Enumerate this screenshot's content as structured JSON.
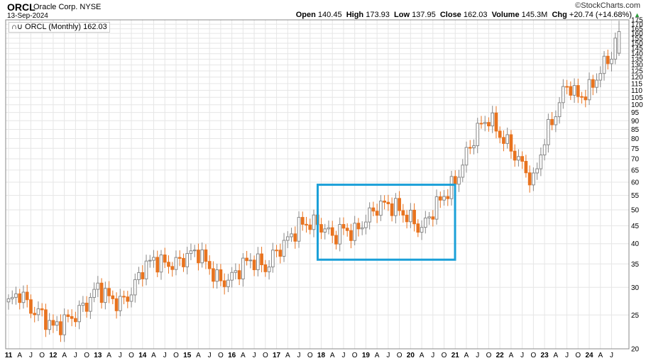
{
  "header": {
    "symbol": "ORCL",
    "company": "Oracle Corp.",
    "exchange": "NYSE",
    "date": "13-Sep-2024",
    "brand": "©StockCharts.com",
    "open_label": "Open",
    "open": "140.45",
    "high_label": "High",
    "high": "173.93",
    "low_label": "Low",
    "low": "137.95",
    "close_label": "Close",
    "close": "162.03",
    "volume_label": "Volume",
    "volume": "145.3M",
    "chg_label": "Chg",
    "chg": "+20.74 (+14.68%)"
  },
  "legend": {
    "text": "ORCL (Monthly) 162.03"
  },
  "colors": {
    "up": "#a0a0a0",
    "down": "#e8731f",
    "highlight": "#1ba0d8",
    "grid": "#e6e6e6",
    "change_arrow": "#2a9d3a"
  },
  "chart_data": {
    "type": "candlestick",
    "scale": "log",
    "ylim": [
      20,
      175
    ],
    "yticks": [
      20,
      25,
      30,
      35,
      40,
      45,
      50,
      55,
      60,
      65,
      70,
      75,
      80,
      85,
      90,
      95,
      100,
      105,
      110,
      115,
      120,
      125,
      130,
      135,
      140,
      145,
      150,
      155,
      160,
      165,
      170,
      175
    ],
    "xticks": [
      "11",
      "A",
      "J",
      "O",
      "12",
      "A",
      "J",
      "O",
      "13",
      "A",
      "J",
      "O",
      "14",
      "A",
      "J",
      "O",
      "15",
      "A",
      "J",
      "O",
      "16",
      "A",
      "J",
      "O",
      "17",
      "A",
      "J",
      "O",
      "18",
      "A",
      "J",
      "O",
      "19",
      "A",
      "J",
      "O",
      "20",
      "A",
      "J",
      "O",
      "21",
      "A",
      "J",
      "O",
      "22",
      "A",
      "J",
      "O",
      "23",
      "A",
      "J",
      "O",
      "24",
      "A",
      "J"
    ],
    "year_ticks": [
      "11",
      "12",
      "13",
      "14",
      "15",
      "16",
      "17",
      "18",
      "19",
      "20",
      "21",
      "22",
      "23",
      "24"
    ],
    "highlight_range": {
      "from": "2018-01",
      "to": "2020-12",
      "low": 36,
      "high": 59
    },
    "anchors": [
      [
        "2011-01",
        27
      ],
      [
        "2011-04",
        29
      ],
      [
        "2011-07",
        26
      ],
      [
        "2011-10",
        25
      ],
      [
        "2012-01",
        23
      ],
      [
        "2012-04",
        24
      ],
      [
        "2012-07",
        25
      ],
      [
        "2012-10",
        27
      ],
      [
        "2013-01",
        30
      ],
      [
        "2013-04",
        28
      ],
      [
        "2013-07",
        27
      ],
      [
        "2013-10",
        29
      ],
      [
        "2014-01",
        34
      ],
      [
        "2014-04",
        36
      ],
      [
        "2014-07",
        35
      ],
      [
        "2014-10",
        35
      ],
      [
        "2015-01",
        37
      ],
      [
        "2015-04",
        38
      ],
      [
        "2015-07",
        34
      ],
      [
        "2015-10",
        31
      ],
      [
        "2016-01",
        32
      ],
      [
        "2016-04",
        35
      ],
      [
        "2016-07",
        36
      ],
      [
        "2016-10",
        34
      ],
      [
        "2017-01",
        38
      ],
      [
        "2017-04",
        41
      ],
      [
        "2017-07",
        45
      ],
      [
        "2017-10",
        46
      ],
      [
        "2018-01",
        45
      ],
      [
        "2018-04",
        42
      ],
      [
        "2018-07",
        44
      ],
      [
        "2018-10",
        43
      ],
      [
        "2019-01",
        47
      ],
      [
        "2019-04",
        51
      ],
      [
        "2019-07",
        52
      ],
      [
        "2019-10",
        50
      ],
      [
        "2020-01",
        47
      ],
      [
        "2020-04",
        44
      ],
      [
        "2020-07",
        50
      ],
      [
        "2020-10",
        55
      ],
      [
        "2021-01",
        60
      ],
      [
        "2021-04",
        72
      ],
      [
        "2021-07",
        85
      ],
      [
        "2021-10",
        92
      ],
      [
        "2022-01",
        82
      ],
      [
        "2022-04",
        75
      ],
      [
        "2022-07",
        67
      ],
      [
        "2022-10",
        60
      ],
      [
        "2023-01",
        80
      ],
      [
        "2023-04",
        95
      ],
      [
        "2023-07",
        115
      ],
      [
        "2023-10",
        105
      ],
      [
        "2024-01",
        110
      ],
      [
        "2024-04",
        125
      ],
      [
        "2024-07",
        140
      ],
      [
        "2024-09",
        162
      ]
    ]
  }
}
